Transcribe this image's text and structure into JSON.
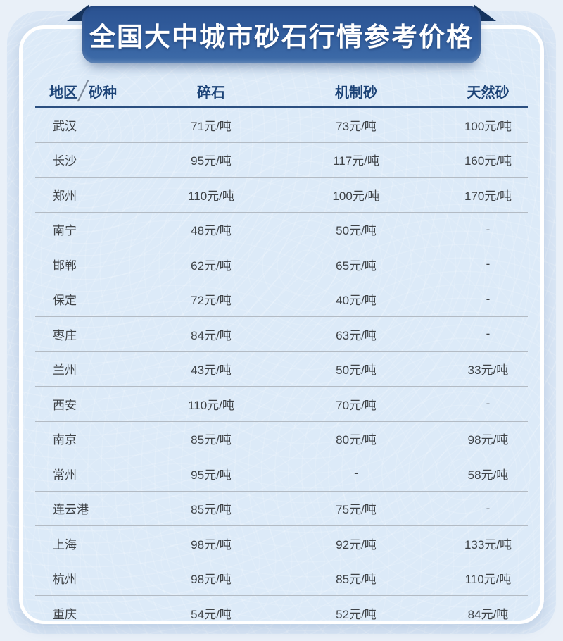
{
  "chart_data": {
    "type": "table",
    "title": "全国大中城市砂石行情参考价格",
    "corner": {
      "row_axis": "地区",
      "col_axis": "砂种"
    },
    "columns": [
      "碎石",
      "机制砂",
      "天然砂"
    ],
    "unit": "元/吨",
    "rows": [
      [
        "武汉",
        "71元/吨",
        "73元/吨",
        "100元/吨"
      ],
      [
        "长沙",
        "95元/吨",
        "117元/吨",
        "160元/吨"
      ],
      [
        "郑州",
        "110元/吨",
        "100元/吨",
        "170元/吨"
      ],
      [
        "南宁",
        "48元/吨",
        "50元/吨",
        "-"
      ],
      [
        "邯郸",
        "62元/吨",
        "65元/吨",
        "-"
      ],
      [
        "保定",
        "72元/吨",
        "40元/吨",
        "-"
      ],
      [
        "枣庄",
        "84元/吨",
        "63元/吨",
        "-"
      ],
      [
        "兰州",
        "43元/吨",
        "50元/吨",
        "33元/吨"
      ],
      [
        "西安",
        "110元/吨",
        "70元/吨",
        "-"
      ],
      [
        "南京",
        "85元/吨",
        "80元/吨",
        "98元/吨"
      ],
      [
        "常州",
        "95元/吨",
        "-",
        "58元/吨"
      ],
      [
        "连云港",
        "85元/吨",
        "75元/吨",
        "-"
      ],
      [
        "上海",
        "98元/吨",
        "92元/吨",
        "133元/吨"
      ],
      [
        "杭州",
        "98元/吨",
        "85元/吨",
        "110元/吨"
      ],
      [
        "重庆",
        "54元/吨",
        "52元/吨",
        "84元/吨"
      ]
    ]
  },
  "colors": {
    "banner_top": "#2a5190",
    "banner_bottom": "#3e6ca9",
    "ribbon_fold": "#17355f",
    "header_text": "#1c4377",
    "header_rule": "#2b4f80",
    "row_divider": "#b3bbc4",
    "cell_text": "#3f4347",
    "card_bg": "#dceaf8",
    "panel_bg": "#d9e6f5",
    "page_bg": "#e9f0f8"
  }
}
